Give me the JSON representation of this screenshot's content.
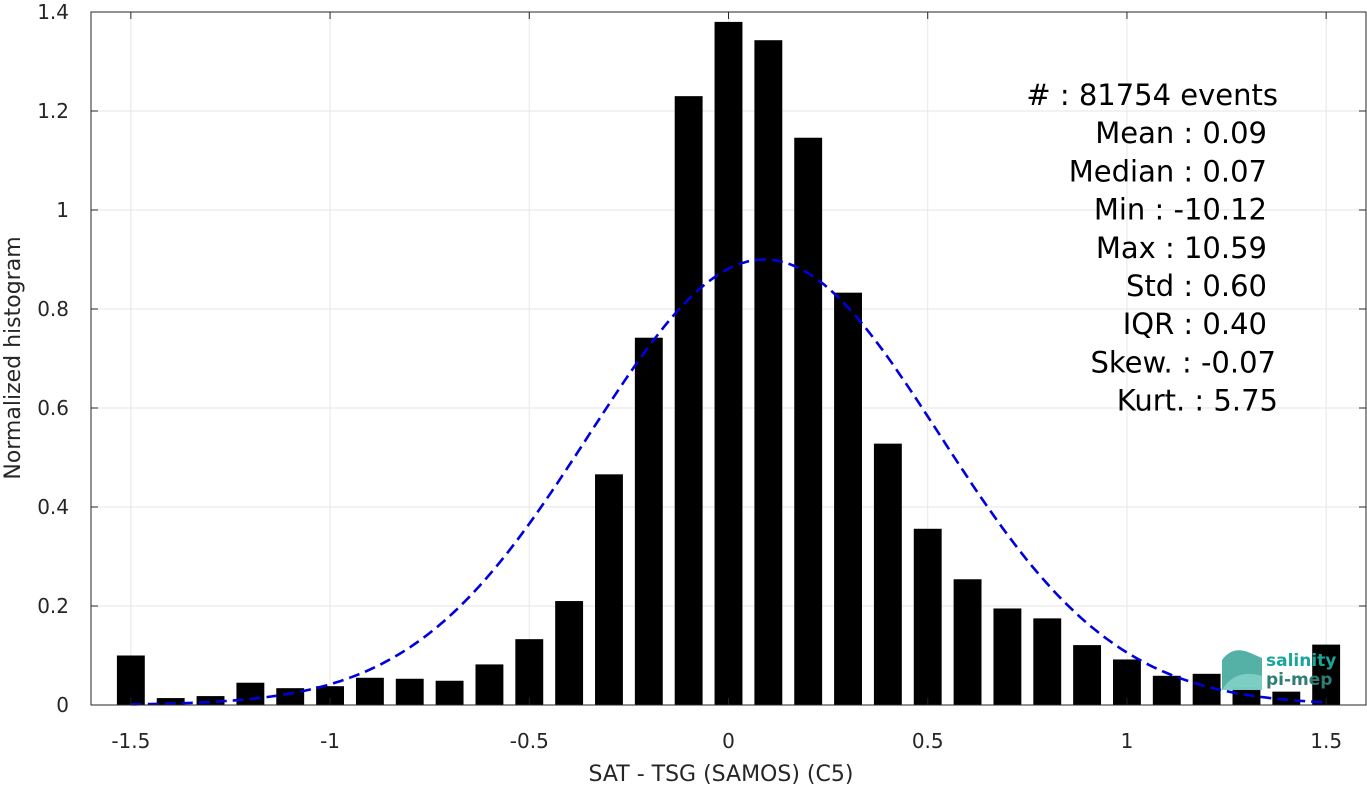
{
  "chart_data": {
    "type": "bar",
    "xlabel": "SAT - TSG (SAMOS) (C5)",
    "ylabel": "Normalized histogram",
    "xlim": [
      -1.6,
      1.6
    ],
    "ylim": [
      0,
      1.4
    ],
    "grid": true,
    "xticks": [
      -1.5,
      -1,
      -0.5,
      0,
      0.5,
      1,
      1.5
    ],
    "xtick_labels": [
      "-1.5",
      "-1",
      "-0.5",
      "0",
      "0.5",
      "1",
      "1.5"
    ],
    "yticks": [
      0,
      0.2,
      0.4,
      0.6,
      0.8,
      1,
      1.2,
      1.4
    ],
    "ytick_labels": [
      "0",
      "0.2",
      "0.4",
      "0.6",
      "0.8",
      "1",
      "1.2",
      "1.4"
    ],
    "bar_width": 0.07,
    "bars": {
      "x": [
        -1.5,
        -1.4,
        -1.3,
        -1.2,
        -1.1,
        -1.0,
        -0.9,
        -0.8,
        -0.7,
        -0.6,
        -0.5,
        -0.4,
        -0.3,
        -0.2,
        -0.1,
        0.0,
        0.1,
        0.2,
        0.3,
        0.4,
        0.5,
        0.6,
        0.7,
        0.8,
        0.9,
        1.0,
        1.1,
        1.2,
        1.3,
        1.4,
        1.5
      ],
      "values": [
        0.1,
        0.014,
        0.018,
        0.045,
        0.034,
        0.038,
        0.055,
        0.053,
        0.049,
        0.082,
        0.133,
        0.21,
        0.466,
        0.742,
        1.23,
        1.38,
        1.343,
        1.146,
        0.833,
        0.528,
        0.356,
        0.254,
        0.195,
        0.175,
        0.121,
        0.092,
        0.059,
        0.063,
        0.036,
        0.027,
        0.122
      ],
      "color": "#000000"
    },
    "fit_curve": {
      "type": "normal",
      "mean": 0.09,
      "std": 0.44,
      "peak": 0.9,
      "x_range": [
        -1.5,
        1.5
      ],
      "color": "#0000dd",
      "style": "dashed"
    },
    "stats": [
      "#  : 81754 events",
      "Mean : 0.09",
      "Median : 0.07",
      "Min : -10.12",
      "Max : 10.59",
      "Std : 0.60",
      "IQR : 0.40",
      "Skew. : -0.07",
      "Kurt. : 5.75"
    ],
    "logo": {
      "line1": "salinity",
      "line2": "pi-mep"
    }
  }
}
